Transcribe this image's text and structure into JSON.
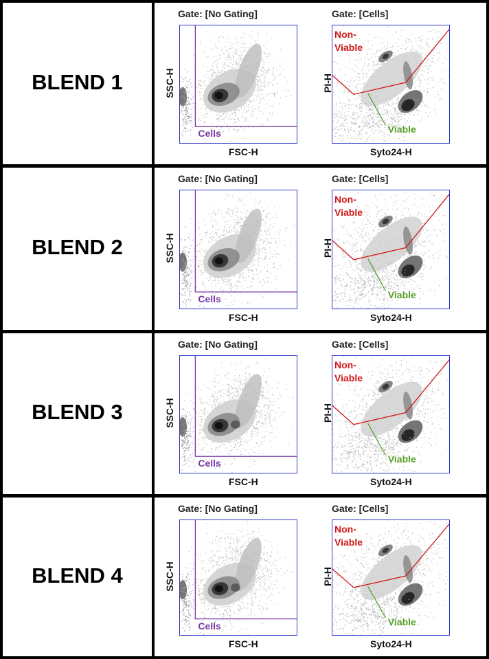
{
  "rows": [
    {
      "label": "BLEND 1"
    },
    {
      "label": "BLEND 2"
    },
    {
      "label": "BLEND 3"
    },
    {
      "label": "BLEND 4"
    }
  ],
  "scatter": {
    "title": "Gate: [No Gating]",
    "xlabel": "FSC-H",
    "ylabel": "SSC-H",
    "gate_label": "Cells",
    "gate_color": "#7a3aa8"
  },
  "viability": {
    "title": "Gate: [Cells]",
    "xlabel": "Syto24-H",
    "ylabel": "PI-H",
    "nonviable_label_1": "Non-",
    "nonviable_label_2": "Viable",
    "viable_label": "Viable",
    "nonviable_color": "#d01818",
    "viable_color": "#5aa02c"
  },
  "colors": {
    "frame": "#2b35c8",
    "background": "#ffffff",
    "border": "#000000"
  }
}
